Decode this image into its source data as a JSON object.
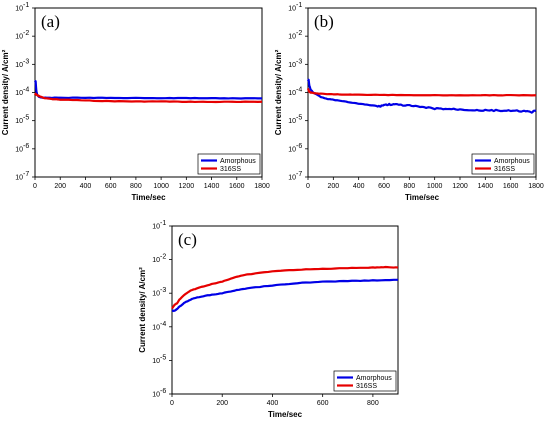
{
  "chart_data": [
    {
      "type": "line",
      "panel_label": "(a)",
      "xlabel": "Time/sec",
      "ylabel": "Current density/ A/cm²",
      "xlim": [
        0,
        1800
      ],
      "ylim_log10": [
        -7,
        -1
      ],
      "log_y": true,
      "x_ticks": [
        "0",
        "200",
        "400",
        "600",
        "800",
        "1000",
        "1200",
        "1400",
        "1600",
        "1800"
      ],
      "y_ticks": [
        {
          "base": "10",
          "exp": "-7"
        },
        {
          "base": "10",
          "exp": "-6"
        },
        {
          "base": "10",
          "exp": "-5"
        },
        {
          "base": "10",
          "exp": "-4"
        },
        {
          "base": "10",
          "exp": "-3"
        },
        {
          "base": "10",
          "exp": "-2"
        },
        {
          "base": "10",
          "exp": "-1"
        }
      ],
      "legend_position": "bottom-right",
      "series": [
        {
          "name": "Amorphous",
          "color": "#0000e6",
          "x": [
            0,
            5,
            10,
            15,
            20,
            30,
            40,
            60,
            100,
            200,
            400,
            600,
            800,
            1000,
            1200,
            1400,
            1600,
            1800
          ],
          "y": [
            0.00025,
            0.00025,
            0.00012,
            9e-05,
            8e-05,
            7e-05,
            6.8e-05,
            6.6e-05,
            6.5e-05,
            6.5e-05,
            6.5e-05,
            6.4e-05,
            6.4e-05,
            6.3e-05,
            6.3e-05,
            6.2e-05,
            6.2e-05,
            6.2e-05
          ]
        },
        {
          "name": "316SS",
          "color": "#e60000",
          "x": [
            0,
            5,
            10,
            20,
            30,
            50,
            80,
            150,
            200,
            400,
            600,
            800,
            1000,
            1200,
            1400,
            1600,
            1800
          ],
          "y": [
            8e-05,
            9e-05,
            8.5e-05,
            8e-05,
            7.5e-05,
            7e-05,
            6.2e-05,
            5.8e-05,
            5.6e-05,
            5.2e-05,
            4.9e-05,
            4.8e-05,
            4.8e-05,
            4.7e-05,
            4.6e-05,
            4.7e-05,
            4.7e-05
          ]
        }
      ]
    },
    {
      "type": "line",
      "panel_label": "(b)",
      "xlabel": "Time/sec",
      "ylabel": "Current density/ A/cm²",
      "xlim": [
        0,
        1800
      ],
      "ylim_log10": [
        -7,
        -1
      ],
      "log_y": true,
      "x_ticks": [
        "0",
        "200",
        "400",
        "600",
        "800",
        "1000",
        "1200",
        "1400",
        "1600",
        "1800"
      ],
      "y_ticks": [
        {
          "base": "10",
          "exp": "-7"
        },
        {
          "base": "10",
          "exp": "-6"
        },
        {
          "base": "10",
          "exp": "-5"
        },
        {
          "base": "10",
          "exp": "-4"
        },
        {
          "base": "10",
          "exp": "-3"
        },
        {
          "base": "10",
          "exp": "-2"
        },
        {
          "base": "10",
          "exp": "-1"
        }
      ],
      "legend_position": "bottom-right",
      "series": [
        {
          "name": "Amorphous",
          "color": "#0000e6",
          "x": [
            0,
            5,
            10,
            20,
            40,
            70,
            100,
            150,
            200,
            300,
            400,
            500,
            560,
            600,
            650,
            700,
            800,
            900,
            1000,
            1100,
            1200,
            1300,
            1400,
            1500,
            1600,
            1700,
            1760,
            1800
          ],
          "y": [
            0.00025,
            0.00028,
            0.00018,
            0.00013,
            0.0001,
            8.5e-05,
            7e-05,
            6e-05,
            5.5e-05,
            4.7e-05,
            4e-05,
            3.5e-05,
            3.2e-05,
            3.6e-05,
            3.8e-05,
            3.7e-05,
            3.4e-05,
            3e-05,
            2.7e-05,
            2.6e-05,
            2.5e-05,
            2.4e-05,
            2.3e-05,
            2.3e-05,
            2.2e-05,
            2.2e-05,
            2e-05,
            2.2e-05
          ]
        },
        {
          "name": "316SS",
          "color": "#e60000",
          "x": [
            0,
            5,
            10,
            20,
            30,
            50,
            100,
            200,
            300,
            400,
            600,
            800,
            1000,
            1200,
            1400,
            1600,
            1800
          ],
          "y": [
            0.00014,
            0.00012,
            0.000105,
            0.0001,
            9.8e-05,
            9.5e-05,
            9e-05,
            8.7e-05,
            8.5e-05,
            8.3e-05,
            8.2e-05,
            8.1e-05,
            8e-05,
            8e-05,
            8e-05,
            8e-05,
            8e-05
          ]
        }
      ]
    },
    {
      "type": "line",
      "panel_label": "(c)",
      "xlabel": "Time/sec",
      "ylabel": "Current density/ A/cm²",
      "xlim": [
        0,
        900
      ],
      "ylim_log10": [
        -6,
        -1
      ],
      "log_y": true,
      "x_ticks": [
        "0",
        "200",
        "400",
        "600",
        "800"
      ],
      "y_ticks": [
        {
          "base": "10",
          "exp": "-6"
        },
        {
          "base": "10",
          "exp": "-5"
        },
        {
          "base": "10",
          "exp": "-4"
        },
        {
          "base": "10",
          "exp": "-3"
        },
        {
          "base": "10",
          "exp": "-2"
        },
        {
          "base": "10",
          "exp": "-1"
        }
      ],
      "legend_position": "bottom-right",
      "series": [
        {
          "name": "Amorphous",
          "color": "#0000e6",
          "x": [
            0,
            10,
            20,
            30,
            50,
            75,
            100,
            150,
            200,
            250,
            300,
            400,
            500,
            600,
            700,
            800,
            900
          ],
          "y": [
            0.0003,
            0.0003,
            0.00034,
            0.0004,
            0.00052,
            0.00065,
            0.00075,
            0.00088,
            0.001,
            0.0012,
            0.0014,
            0.0017,
            0.002,
            0.0022,
            0.0023,
            0.0024,
            0.0025
          ]
        },
        {
          "name": "316SS",
          "color": "#e60000",
          "x": [
            0,
            10,
            20,
            30,
            50,
            75,
            100,
            150,
            200,
            250,
            300,
            400,
            500,
            600,
            700,
            800,
            850,
            900
          ],
          "y": [
            0.00035,
            0.00045,
            0.0005,
            0.00065,
            0.0009,
            0.0012,
            0.0014,
            0.0018,
            0.0022,
            0.003,
            0.0036,
            0.0045,
            0.005,
            0.0053,
            0.0056,
            0.0058,
            0.006,
            0.0058
          ]
        }
      ]
    }
  ]
}
